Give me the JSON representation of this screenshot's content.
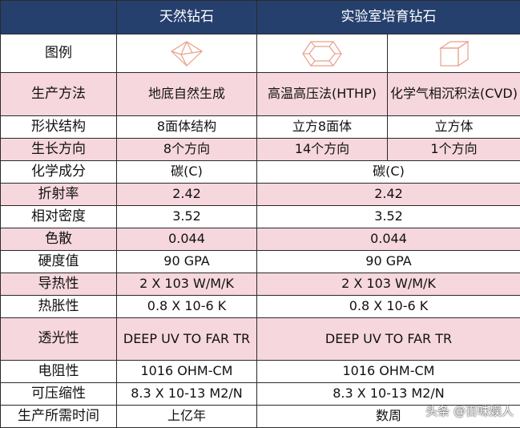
{
  "header": {
    "corner": "",
    "natural": "天然钻石",
    "lab": "实验室培育钻石"
  },
  "legend_row": {
    "label": "图例",
    "icons": [
      "octahedron-diamond-icon",
      "hexagonal-diamond-icon",
      "cube-diamond-icon"
    ]
  },
  "rows": [
    {
      "label": "生产方法",
      "natural": "地底自然生成",
      "lab1": "高温高压法(HTHP)",
      "lab2": "化学气相沉积法(CVD)"
    },
    {
      "label": "形状结构",
      "natural": "8面体结构",
      "lab1": "立方8面体",
      "lab2": "立方体"
    },
    {
      "label": "生长方向",
      "natural": "8个方向",
      "lab1": "14个方向",
      "lab2": "1个方向"
    },
    {
      "label": "化学成分",
      "natural": "碳(C)",
      "lab": "碳(C)"
    },
    {
      "label": "折射率",
      "natural": "2.42",
      "lab": "2.42"
    },
    {
      "label": "相对密度",
      "natural": "3.52",
      "lab": "3.52"
    },
    {
      "label": "色散",
      "natural": "0.044",
      "lab": "0.044"
    },
    {
      "label": "硬度值",
      "natural": "90 GPA",
      "lab": "90 GPA"
    },
    {
      "label": "导热性",
      "natural": "2 X 103 W/M/K",
      "lab": "2 X 103 W/M/K"
    },
    {
      "label": "热胀性",
      "natural": "0.8 X 10-6 K",
      "lab": "0.8 X 10-6 K"
    },
    {
      "label": "透光性",
      "natural": "DEEP UV TO FAR TR",
      "lab": "DEEP UV TO FAR TR"
    },
    {
      "label": "电阻性",
      "natural": "1016 OHM-CM",
      "lab": "1016 OHM-CM"
    },
    {
      "label": "可压缩性",
      "natural": "8.3 X 10-13 M2/N",
      "lab": "8.3 X 10-13 M2/N"
    },
    {
      "label": "生产所需时间",
      "natural": "上亿年",
      "lab": "数周"
    }
  ],
  "colors": {
    "header_bg": "#26406e",
    "pink_row": "#f6d7dd",
    "icon_stroke": "#e8a08c"
  },
  "watermark": "头条 @百味娱人"
}
